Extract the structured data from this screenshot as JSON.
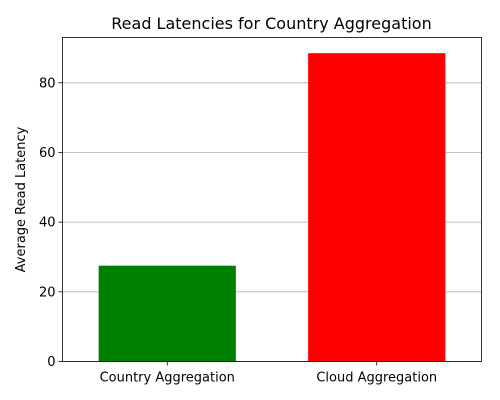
{
  "chart_data": {
    "type": "bar",
    "title": "Read Latencies for Country Aggregation",
    "xlabel": "",
    "ylabel": "Average Read Latency",
    "categories": [
      "Country Aggregation",
      "Cloud Aggregation"
    ],
    "values": [
      27.5,
      88.5
    ],
    "colors": [
      "#008000",
      "#ff0000"
    ],
    "ylim": [
      0,
      93
    ],
    "yticks": [
      0,
      20,
      40,
      60,
      80
    ],
    "grid": "y-axis",
    "legend": "none"
  }
}
